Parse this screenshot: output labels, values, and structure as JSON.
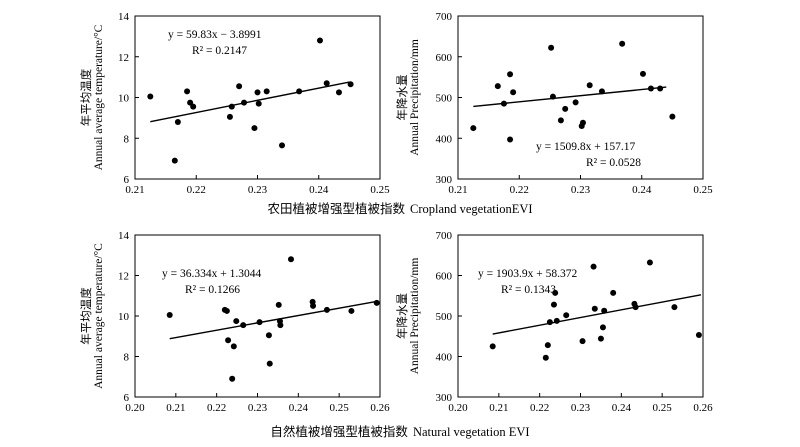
{
  "chart_data": [
    {
      "type": "scatter",
      "ylabel_cn": "年平均温度",
      "ylabel_en": "Annual average temperature/°C",
      "xlim": [
        0.21,
        0.25
      ],
      "ylim": [
        6,
        14
      ],
      "xticks": [
        "0.21",
        "0.22",
        "0.23",
        "0.24",
        "0.25"
      ],
      "yticks": [
        "6",
        "8",
        "10",
        "12",
        "14"
      ],
      "equation": "y = 59.83x − 3.8991",
      "r2": "R² = 0.2147",
      "fit": {
        "slope": 59.83,
        "intercept": -3.8991,
        "x_range": [
          0.2125,
          0.245
        ]
      },
      "points": [
        {
          "x": 0.2125,
          "y": 10.05
        },
        {
          "x": 0.2165,
          "y": 6.9
        },
        {
          "x": 0.217,
          "y": 8.8
        },
        {
          "x": 0.2185,
          "y": 10.3
        },
        {
          "x": 0.219,
          "y": 9.75
        },
        {
          "x": 0.2195,
          "y": 9.55
        },
        {
          "x": 0.2255,
          "y": 9.05
        },
        {
          "x": 0.2258,
          "y": 9.55
        },
        {
          "x": 0.227,
          "y": 10.55
        },
        {
          "x": 0.2278,
          "y": 9.75
        },
        {
          "x": 0.2295,
          "y": 8.5
        },
        {
          "x": 0.23,
          "y": 10.25
        },
        {
          "x": 0.2302,
          "y": 9.7
        },
        {
          "x": 0.2315,
          "y": 10.3
        },
        {
          "x": 0.234,
          "y": 7.65
        },
        {
          "x": 0.2368,
          "y": 10.3
        },
        {
          "x": 0.2402,
          "y": 12.8
        },
        {
          "x": 0.2413,
          "y": 10.7
        },
        {
          "x": 0.2433,
          "y": 10.25
        },
        {
          "x": 0.2452,
          "y": 10.65
        }
      ]
    },
    {
      "type": "scatter",
      "ylabel_cn": "年降水量",
      "ylabel_en": "Annual Precipitation/mm",
      "xlim": [
        0.21,
        0.25
      ],
      "ylim": [
        300,
        700
      ],
      "xticks": [
        "0.21",
        "0.22",
        "0.23",
        "0.24",
        "0.25"
      ],
      "yticks": [
        "300",
        "400",
        "500",
        "600",
        "700"
      ],
      "equation": "y = 1509.8x + 157.17",
      "r2": "R² = 0.0528",
      "fit": {
        "slope": 1509.8,
        "intercept": 157.17,
        "x_range": [
          0.2125,
          0.244
        ]
      },
      "points": [
        {
          "x": 0.2125,
          "y": 425
        },
        {
          "x": 0.2165,
          "y": 528
        },
        {
          "x": 0.2175,
          "y": 485
        },
        {
          "x": 0.2185,
          "y": 557
        },
        {
          "x": 0.219,
          "y": 513
        },
        {
          "x": 0.2185,
          "y": 397
        },
        {
          "x": 0.2252,
          "y": 622
        },
        {
          "x": 0.2255,
          "y": 502
        },
        {
          "x": 0.2268,
          "y": 444
        },
        {
          "x": 0.2275,
          "y": 472
        },
        {
          "x": 0.2292,
          "y": 488
        },
        {
          "x": 0.2302,
          "y": 430
        },
        {
          "x": 0.2304,
          "y": 438
        },
        {
          "x": 0.2315,
          "y": 530
        },
        {
          "x": 0.2335,
          "y": 515
        },
        {
          "x": 0.2368,
          "y": 632
        },
        {
          "x": 0.2402,
          "y": 558
        },
        {
          "x": 0.2415,
          "y": 522
        },
        {
          "x": 0.243,
          "y": 522
        },
        {
          "x": 0.245,
          "y": 453
        }
      ]
    },
    {
      "type": "scatter",
      "ylabel_cn": "年平均温度",
      "ylabel_en": "Annual average temperature/°C",
      "xlim": [
        0.2,
        0.26
      ],
      "ylim": [
        6,
        14
      ],
      "xticks": [
        "0.20",
        "0.21",
        "0.22",
        "0.23",
        "0.24",
        "0.25",
        "0.26"
      ],
      "yticks": [
        "6",
        "8",
        "10",
        "12",
        "14"
      ],
      "equation": "y = 36.334x + 1.3044",
      "r2": "R² = 0.1266",
      "fit": {
        "slope": 36.334,
        "intercept": 1.3044,
        "x_range": [
          0.2085,
          0.259
        ]
      },
      "points": [
        {
          "x": 0.2085,
          "y": 10.05
        },
        {
          "x": 0.222,
          "y": 10.3
        },
        {
          "x": 0.2225,
          "y": 10.25
        },
        {
          "x": 0.2228,
          "y": 8.8
        },
        {
          "x": 0.2238,
          "y": 6.9
        },
        {
          "x": 0.2242,
          "y": 8.5
        },
        {
          "x": 0.2248,
          "y": 9.75
        },
        {
          "x": 0.2265,
          "y": 9.55
        },
        {
          "x": 0.2305,
          "y": 9.7
        },
        {
          "x": 0.2328,
          "y": 9.05
        },
        {
          "x": 0.233,
          "y": 7.65
        },
        {
          "x": 0.2352,
          "y": 10.55
        },
        {
          "x": 0.2355,
          "y": 9.75
        },
        {
          "x": 0.2356,
          "y": 9.55
        },
        {
          "x": 0.2382,
          "y": 12.8
        },
        {
          "x": 0.2435,
          "y": 10.7
        },
        {
          "x": 0.2436,
          "y": 10.5
        },
        {
          "x": 0.247,
          "y": 10.3
        },
        {
          "x": 0.253,
          "y": 10.25
        },
        {
          "x": 0.2592,
          "y": 10.65
        }
      ]
    },
    {
      "type": "scatter",
      "ylabel_cn": "年降水量",
      "ylabel_en": "Annual Precipitation/mm",
      "xlim": [
        0.2,
        0.26
      ],
      "ylim": [
        300,
        700
      ],
      "xticks": [
        "0.20",
        "0.21",
        "0.22",
        "0.23",
        "0.24",
        "0.25",
        "0.26"
      ],
      "yticks": [
        "300",
        "400",
        "500",
        "600",
        "700"
      ],
      "equation": "y = 1903.9x + 58.372",
      "r2": "R² = 0.1343",
      "fit": {
        "slope": 1903.9,
        "intercept": 58.372,
        "x_range": [
          0.2085,
          0.2595
        ]
      },
      "points": [
        {
          "x": 0.2085,
          "y": 425
        },
        {
          "x": 0.2215,
          "y": 397
        },
        {
          "x": 0.222,
          "y": 428
        },
        {
          "x": 0.2225,
          "y": 485
        },
        {
          "x": 0.2235,
          "y": 528
        },
        {
          "x": 0.2238,
          "y": 557
        },
        {
          "x": 0.2242,
          "y": 488
        },
        {
          "x": 0.2265,
          "y": 502
        },
        {
          "x": 0.2305,
          "y": 438
        },
        {
          "x": 0.2332,
          "y": 622
        },
        {
          "x": 0.2335,
          "y": 518
        },
        {
          "x": 0.235,
          "y": 444
        },
        {
          "x": 0.2355,
          "y": 472
        },
        {
          "x": 0.2358,
          "y": 513
        },
        {
          "x": 0.238,
          "y": 557
        },
        {
          "x": 0.2432,
          "y": 530
        },
        {
          "x": 0.2435,
          "y": 522
        },
        {
          "x": 0.247,
          "y": 632
        },
        {
          "x": 0.253,
          "y": 522
        },
        {
          "x": 0.259,
          "y": 453
        }
      ]
    }
  ],
  "xlabels": {
    "top": {
      "cn": "农田植被增强型植被指数",
      "en": "Cropland vegetationEVI"
    },
    "bottom": {
      "cn": "自然植被增强型植被指数",
      "en": "Natural vegetation EVI"
    }
  }
}
